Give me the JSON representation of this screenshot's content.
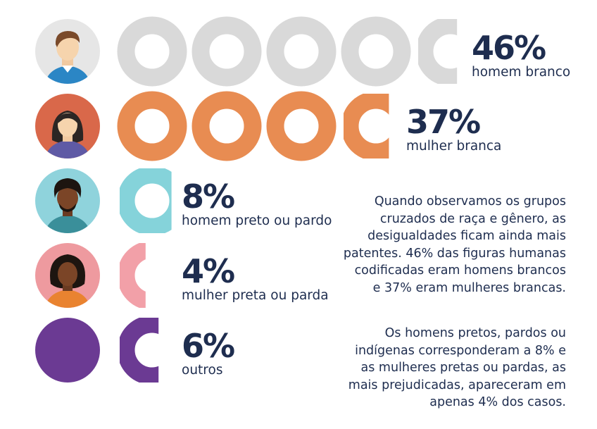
{
  "chart_data": {
    "type": "pictogram",
    "unit": "%",
    "series": [
      {
        "name": "homem branco",
        "value": 46,
        "label": "46%",
        "color": "#d9d9d9"
      },
      {
        "name": "mulher branca",
        "value": 37,
        "label": "37%",
        "color": "#e88c52"
      },
      {
        "name": "homem preto ou pardo",
        "value": 8,
        "label": "8%",
        "color": "#85d3da"
      },
      {
        "name": "mulher preta ou parda",
        "value": 4,
        "label": "4%",
        "color": "#f2a0a8"
      },
      {
        "name": "outros",
        "value": 6,
        "label": "6%",
        "color": "#6b3a93"
      }
    ]
  },
  "text": {
    "paragraph1": [
      "Quando observamos os grupos",
      "cruzados de raça e gênero, as",
      "desigualdades ficam ainda mais",
      "patentes. 46% das figuras humanas",
      "codificadas eram homens brancos",
      "e 37% eram mulheres brancas."
    ],
    "paragraph2": [
      "Os homens pretos, pardos ou",
      "indígenas corresponderam a 8% e",
      "as mulheres pretas ou pardas, as",
      "mais prejudicadas, apareceram em",
      "apenas 4% dos casos."
    ]
  },
  "avatars": [
    {
      "icon": "white-man-avatar-icon",
      "bg": "#e6e6e6"
    },
    {
      "icon": "white-woman-avatar-icon",
      "bg": "#d9684a"
    },
    {
      "icon": "black-man-avatar-icon",
      "bg": "#8fd3dc"
    },
    {
      "icon": "black-woman-avatar-icon",
      "bg": "#ee9a9f"
    },
    {
      "icon": "others-avatar-icon",
      "bg": "#6b3a93"
    }
  ]
}
